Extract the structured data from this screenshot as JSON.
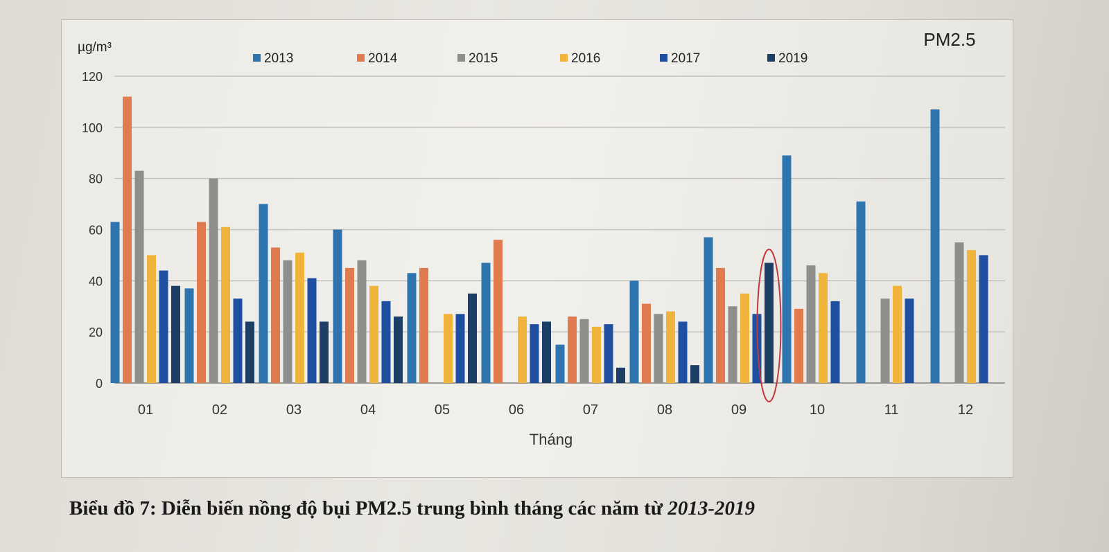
{
  "chart_data": {
    "type": "bar",
    "title": "PM2.5",
    "ylabel": "µg/m³",
    "xlabel": "Tháng",
    "ylim": [
      0,
      120
    ],
    "yticks": [
      0,
      20,
      40,
      60,
      80,
      100,
      120
    ],
    "grid": true,
    "legend_position": "top",
    "categories": [
      "01",
      "02",
      "03",
      "04",
      "05",
      "06",
      "07",
      "08",
      "09",
      "10",
      "11",
      "12"
    ],
    "series": [
      {
        "name": "2013",
        "color": "#2e75b0",
        "values": [
          63,
          37,
          70,
          60,
          43,
          47,
          15,
          40,
          57,
          89,
          71,
          107
        ]
      },
      {
        "name": "2014",
        "color": "#e07b4f",
        "values": [
          112,
          63,
          53,
          45,
          45,
          56,
          26,
          31,
          45,
          29,
          null,
          null
        ]
      },
      {
        "name": "2015",
        "color": "#8e8e8c",
        "values": [
          83,
          80,
          48,
          48,
          null,
          null,
          25,
          27,
          30,
          46,
          33,
          55
        ]
      },
      {
        "name": "2016",
        "color": "#f0b43c",
        "values": [
          50,
          61,
          51,
          38,
          27,
          26,
          22,
          28,
          35,
          43,
          38,
          52
        ]
      },
      {
        "name": "2017",
        "color": "#1f4fa0",
        "values": [
          44,
          33,
          41,
          32,
          27,
          23,
          23,
          24,
          27,
          32,
          33,
          50
        ]
      },
      {
        "name": "2019",
        "color": "#1d3f66",
        "values": [
          38,
          24,
          24,
          26,
          35,
          24,
          6,
          7,
          47,
          null,
          null,
          null
        ]
      }
    ],
    "annotations": [
      "red ellipse highlighting 2019 value in month 09"
    ]
  },
  "caption": {
    "main": "Biểu đồ 7: Diễn biến nồng độ bụi PM2.5 trung bình tháng các năm từ ",
    "range": "2013-2019"
  }
}
